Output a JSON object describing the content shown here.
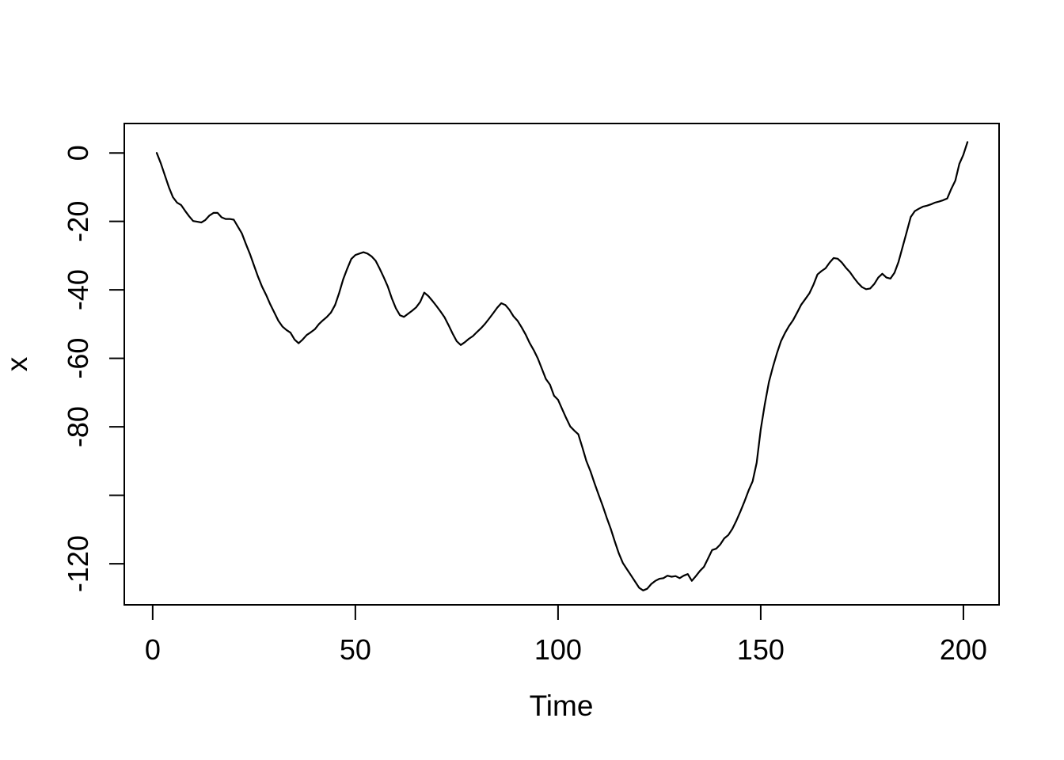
{
  "figure": {
    "background_color": "#ffffff",
    "foreground_color": "#000000",
    "line_color": "#000000"
  },
  "chart_data": {
    "type": "line",
    "title": "",
    "xlabel": "Time",
    "ylabel": "x",
    "legend": null,
    "grid": false,
    "x_start": 1,
    "x_step": 1,
    "xlim": [
      -7.0,
      208.8
    ],
    "ylim": [
      -132.0,
      8.6
    ],
    "x_ticks": [
      0,
      50,
      100,
      150,
      200
    ],
    "x_tick_labels": [
      "0",
      "50",
      "100",
      "150",
      "200"
    ],
    "y_ticks": [
      0,
      -20,
      -40,
      -60,
      -80,
      -100,
      -120
    ],
    "y_tick_labels": [
      "0",
      "-20",
      "-40",
      "-60",
      "-80",
      "",
      "-120"
    ],
    "series": [
      {
        "name": "x",
        "values": [
          0,
          -3,
          -6.5,
          -10,
          -12.9,
          -14.5,
          -15.2,
          -16.9,
          -18.5,
          -19.9,
          -20.1,
          -20.3,
          -19.6,
          -18.3,
          -17.5,
          -17.5,
          -18.8,
          -19.3,
          -19.3,
          -19.5,
          -21.5,
          -23.5,
          -26.6,
          -29.5,
          -32.9,
          -36.2,
          -39.1,
          -41.5,
          -44.2,
          -46.6,
          -49,
          -50.7,
          -51.7,
          -52.5,
          -54.5,
          -55.6,
          -54.5,
          -53.2,
          -52.4,
          -51.5,
          -50,
          -48.9,
          -47.9,
          -46.6,
          -44.4,
          -40.9,
          -36.9,
          -33.8,
          -31,
          -29.8,
          -29.4,
          -29,
          -29.4,
          -30.2,
          -31.5,
          -33.8,
          -36.3,
          -39,
          -42.5,
          -45.4,
          -47.4,
          -47.9,
          -47,
          -46.1,
          -45.1,
          -43.5,
          -40.8,
          -41.8,
          -43.2,
          -44.7,
          -46.3,
          -48,
          -50.3,
          -52.8,
          -55,
          -56.1,
          -55.3,
          -54.3,
          -53.5,
          -52.3,
          -51.2,
          -49.9,
          -48.4,
          -46.8,
          -45.2,
          -43.9,
          -44.4,
          -45.8,
          -47.7,
          -49,
          -50.9,
          -53,
          -55.5,
          -57.6,
          -60,
          -63,
          -66,
          -67.7,
          -70.9,
          -72.1,
          -74.8,
          -77.4,
          -79.9,
          -81.1,
          -82.2,
          -86,
          -90,
          -93,
          -96.5,
          -99.8,
          -103,
          -106.5,
          -109.8,
          -113.5,
          -117,
          -119.8,
          -121.6,
          -123.4,
          -125.2,
          -127,
          -127.8,
          -127.3,
          -125.9,
          -125,
          -124.4,
          -124.2,
          -123.5,
          -123.8,
          -123.6,
          -124.2,
          -123.5,
          -123,
          -125,
          -123.6,
          -122.1,
          -120.9,
          -118.5,
          -116,
          -115.6,
          -114.4,
          -112.6,
          -111.6,
          -109.8,
          -107.4,
          -104.7,
          -101.8,
          -98.6,
          -95.9,
          -90.5,
          -80.8,
          -73.5,
          -67,
          -62.5,
          -58.5,
          -55,
          -52.6,
          -50.5,
          -48.8,
          -46.6,
          -44.3,
          -42.7,
          -41,
          -38.5,
          -35.5,
          -34.5,
          -33.7,
          -32,
          -30.7,
          -30.9,
          -32,
          -33.5,
          -34.8,
          -36.5,
          -38,
          -39.2,
          -39.8,
          -39.6,
          -38.3,
          -36.4,
          -35.3,
          -36.4,
          -36.7,
          -35,
          -31.8,
          -27.5,
          -23.1,
          -18.7,
          -17,
          -16.3,
          -15.7,
          -15.4,
          -15,
          -14.5,
          -14.2,
          -13.8,
          -13.3,
          -10.5,
          -8.1,
          -3.2,
          -0.5,
          3.2
        ]
      }
    ]
  }
}
